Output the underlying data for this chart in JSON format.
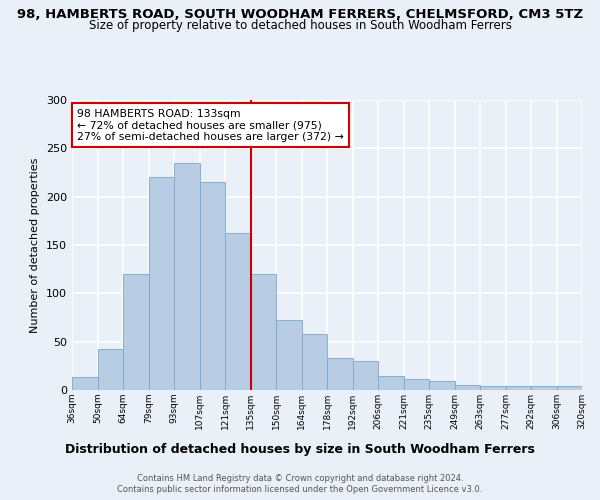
{
  "title": "98, HAMBERTS ROAD, SOUTH WOODHAM FERRERS, CHELMSFORD, CM3 5TZ",
  "subtitle": "Size of property relative to detached houses in South Woodham Ferrers",
  "xlabel": "Distribution of detached houses by size in South Woodham Ferrers",
  "ylabel": "Number of detached properties",
  "categories": [
    "36sqm",
    "50sqm",
    "64sqm",
    "79sqm",
    "93sqm",
    "107sqm",
    "121sqm",
    "135sqm",
    "150sqm",
    "164sqm",
    "178sqm",
    "192sqm",
    "206sqm",
    "221sqm",
    "235sqm",
    "249sqm",
    "263sqm",
    "277sqm",
    "292sqm",
    "306sqm",
    "320sqm"
  ],
  "bar_values": [
    13,
    42,
    120,
    220,
    235,
    215,
    162,
    120,
    72,
    58,
    33,
    30,
    15,
    11,
    9,
    5,
    4,
    4,
    4,
    4
  ],
  "bar_color": "#b8cce4",
  "bar_edge_color": "#7aa8cc",
  "vline_color": "#cc0000",
  "annotation_title": "98 HAMBERTS ROAD: 133sqm",
  "annotation_line1": "← 72% of detached houses are smaller (975)",
  "annotation_line2": "27% of semi-detached houses are larger (372) →",
  "annotation_box_color": "#ffffff",
  "annotation_box_edge": "#cc0000",
  "footer1": "Contains HM Land Registry data © Crown copyright and database right 2024.",
  "footer2": "Contains public sector information licensed under the Open Government Licence v3.0.",
  "ylim": [
    0,
    300
  ],
  "yticks": [
    0,
    50,
    100,
    150,
    200,
    250,
    300
  ],
  "bg_color": "#eaf0f8",
  "plot_bg_color": "#eaf0f8",
  "grid_color": "#ffffff",
  "title_fontsize": 9.5,
  "subtitle_fontsize": 8.5
}
